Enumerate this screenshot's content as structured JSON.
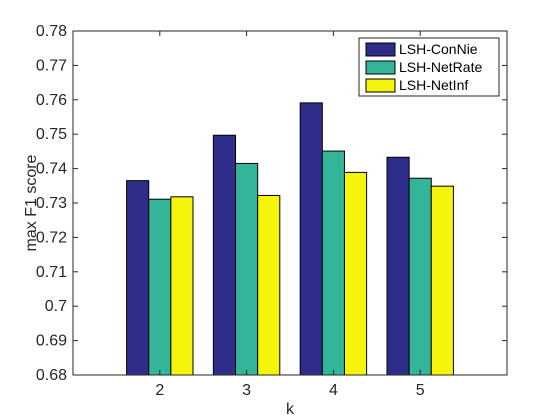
{
  "chart_data": {
    "type": "bar",
    "categories": [
      "2",
      "3",
      "4",
      "5"
    ],
    "series": [
      {
        "name": "LSH-ConNie",
        "color": "#2e2e8a",
        "values": [
          0.7365,
          0.7497,
          0.7591,
          0.7433
        ]
      },
      {
        "name": "LSH-NetRate",
        "color": "#33b59a",
        "values": [
          0.7311,
          0.7415,
          0.7451,
          0.7372
        ]
      },
      {
        "name": "LSH-NetInf",
        "color": "#f5f50c",
        "values": [
          0.7318,
          0.7322,
          0.7389,
          0.7349
        ]
      }
    ],
    "xlabel": "k",
    "ylabel": "max F1 score",
    "ylim": [
      0.68,
      0.78
    ],
    "xlim": [
      1,
      6
    ],
    "yticks": [
      "0.68",
      "0.69",
      "0.7",
      "0.71",
      "0.72",
      "0.73",
      "0.74",
      "0.75",
      "0.76",
      "0.77",
      "0.78"
    ],
    "grid": false,
    "legend_position": "top-right"
  }
}
